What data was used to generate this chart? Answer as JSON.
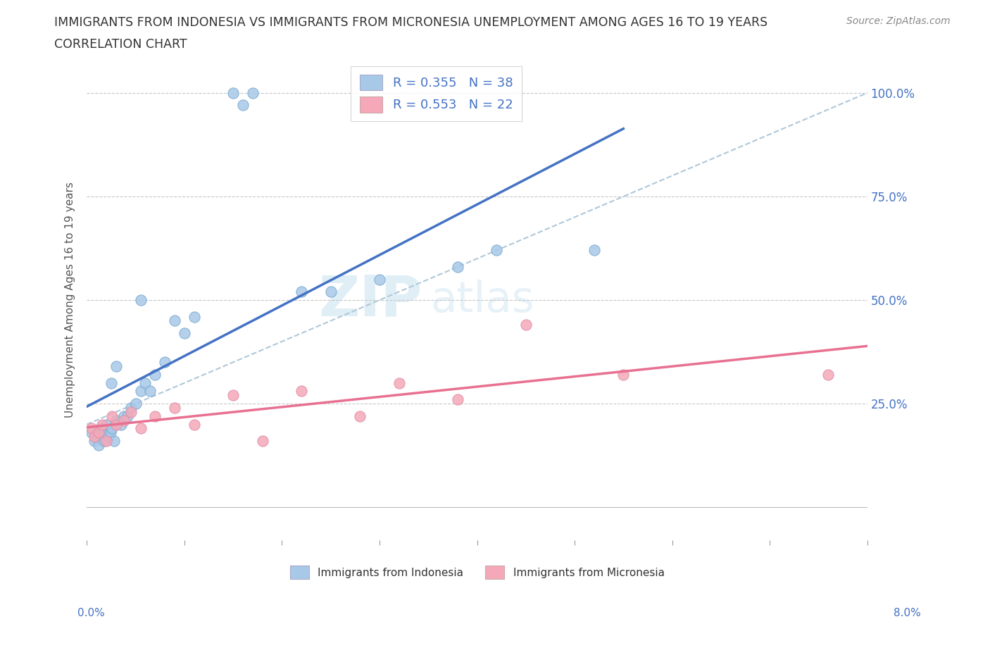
{
  "title_line1": "IMMIGRANTS FROM INDONESIA VS IMMIGRANTS FROM MICRONESIA UNEMPLOYMENT AMONG AGES 16 TO 19 YEARS",
  "title_line2": "CORRELATION CHART",
  "source": "Source: ZipAtlas.com",
  "ylabel": "Unemployment Among Ages 16 to 19 years",
  "series1_name": "Immigrants from Indonesia",
  "series2_name": "Immigrants from Micronesia",
  "series1_color": "#a8c8e8",
  "series2_color": "#f4a8b8",
  "series1_line_color": "#4472c4",
  "series2_line_color": "#e87090",
  "R1": 0.355,
  "N1": 38,
  "R2": 0.553,
  "N2": 22,
  "legend_color": "#4472c4",
  "xlim": [
    0.0,
    8.0
  ],
  "ylim": [
    -5.0,
    105.0
  ],
  "indonesia_x": [
    0.05,
    0.08,
    0.1,
    0.12,
    0.14,
    0.16,
    0.18,
    0.2,
    0.22,
    0.24,
    0.26,
    0.28,
    0.3,
    0.35,
    0.38,
    0.42,
    0.45,
    0.5,
    0.55,
    0.6,
    0.65,
    0.7,
    0.8,
    0.9,
    1.0,
    1.1,
    1.5,
    1.6,
    1.7,
    2.2,
    2.5,
    3.0,
    3.8,
    4.2,
    5.2,
    0.55,
    0.3,
    0.25
  ],
  "indonesia_y": [
    18,
    16,
    17,
    15,
    19,
    18,
    16,
    20,
    17,
    18,
    19,
    16,
    21,
    20,
    22,
    22,
    24,
    25,
    28,
    30,
    28,
    32,
    35,
    45,
    42,
    46,
    100,
    97,
    100,
    52,
    52,
    55,
    58,
    62,
    62,
    50,
    34,
    30
  ],
  "micronesia_x": [
    0.05,
    0.08,
    0.12,
    0.16,
    0.2,
    0.26,
    0.3,
    0.38,
    0.45,
    0.55,
    0.7,
    0.9,
    1.1,
    1.5,
    1.8,
    2.2,
    2.8,
    3.2,
    3.8,
    4.5,
    5.5,
    7.6
  ],
  "micronesia_y": [
    19,
    17,
    18,
    20,
    16,
    22,
    20,
    21,
    23,
    19,
    22,
    24,
    20,
    27,
    16,
    28,
    22,
    30,
    26,
    44,
    32,
    32
  ],
  "watermark_text": "ZIP",
  "watermark_text2": "atlas"
}
